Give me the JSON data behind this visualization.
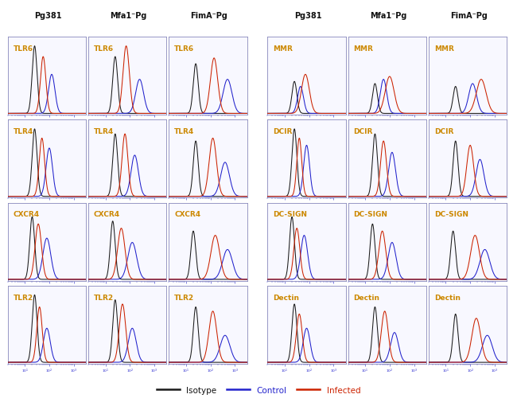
{
  "col_headers_left": [
    "Pg381",
    "Mfa1⁻Pg",
    "FimA⁻Pg"
  ],
  "col_headers_right": [
    "Pg381",
    "Mfa1⁻Pg",
    "FimA⁻Pg"
  ],
  "row_labels_left": [
    "TLR6",
    "TLR4",
    "CXCR4",
    "TLR2"
  ],
  "row_labels_right": [
    "MMR",
    "DCIR",
    "DC-SIGN",
    "Dectin"
  ],
  "label_color": "#CC8800",
  "axis_color": "#2222cc",
  "colors": {
    "isotype": "#1a1a1a",
    "control": "#2222cc",
    "infected": "#cc2200"
  },
  "legend_labels": [
    "Isotype",
    "Control",
    "Infected"
  ],
  "configs_left": {
    "0,0": {
      "iso": [
        1.4,
        0.1,
        0.95
      ],
      "ctrl": [
        2.1,
        0.13,
        0.55
      ],
      "inf": [
        1.75,
        0.11,
        0.8
      ]
    },
    "0,1": {
      "iso": [
        1.4,
        0.1,
        0.8
      ],
      "ctrl": [
        2.4,
        0.16,
        0.48
      ],
      "inf": [
        1.85,
        0.13,
        0.95
      ]
    },
    "0,2": {
      "iso": [
        1.4,
        0.1,
        0.7
      ],
      "ctrl": [
        2.7,
        0.18,
        0.48
      ],
      "inf": [
        2.15,
        0.15,
        0.78
      ]
    },
    "1,0": {
      "iso": [
        1.4,
        0.1,
        0.95
      ],
      "ctrl": [
        2.0,
        0.13,
        0.68
      ],
      "inf": [
        1.7,
        0.11,
        0.82
      ]
    },
    "1,1": {
      "iso": [
        1.4,
        0.1,
        0.88
      ],
      "ctrl": [
        2.2,
        0.15,
        0.58
      ],
      "inf": [
        1.8,
        0.12,
        0.88
      ]
    },
    "1,2": {
      "iso": [
        1.4,
        0.1,
        0.78
      ],
      "ctrl": [
        2.6,
        0.18,
        0.48
      ],
      "inf": [
        2.1,
        0.15,
        0.82
      ]
    },
    "2,0": {
      "iso": [
        1.3,
        0.1,
        0.88
      ],
      "ctrl": [
        1.9,
        0.16,
        0.58
      ],
      "inf": [
        1.55,
        0.13,
        0.78
      ]
    },
    "2,1": {
      "iso": [
        1.3,
        0.1,
        0.82
      ],
      "ctrl": [
        2.1,
        0.18,
        0.52
      ],
      "inf": [
        1.65,
        0.15,
        0.72
      ]
    },
    "2,2": {
      "iso": [
        1.3,
        0.1,
        0.68
      ],
      "ctrl": [
        2.7,
        0.2,
        0.42
      ],
      "inf": [
        2.2,
        0.18,
        0.62
      ]
    },
    "3,0": {
      "iso": [
        1.4,
        0.1,
        0.95
      ],
      "ctrl": [
        1.9,
        0.14,
        0.48
      ],
      "inf": [
        1.6,
        0.11,
        0.78
      ]
    },
    "3,1": {
      "iso": [
        1.4,
        0.1,
        0.88
      ],
      "ctrl": [
        2.1,
        0.16,
        0.48
      ],
      "inf": [
        1.7,
        0.13,
        0.82
      ]
    },
    "3,2": {
      "iso": [
        1.4,
        0.1,
        0.78
      ],
      "ctrl": [
        2.6,
        0.2,
        0.38
      ],
      "inf": [
        2.1,
        0.16,
        0.72
      ]
    }
  },
  "configs_right": {
    "0,0": {
      "iso": [
        1.4,
        0.1,
        0.45
      ],
      "ctrl": [
        1.65,
        0.12,
        0.38
      ],
      "inf": [
        1.85,
        0.16,
        0.55
      ]
    },
    "0,1": {
      "iso": [
        1.4,
        0.1,
        0.42
      ],
      "ctrl": [
        1.75,
        0.13,
        0.48
      ],
      "inf": [
        2.0,
        0.18,
        0.52
      ]
    },
    "0,2": {
      "iso": [
        1.4,
        0.1,
        0.38
      ],
      "ctrl": [
        2.1,
        0.16,
        0.42
      ],
      "inf": [
        2.45,
        0.2,
        0.48
      ]
    },
    "1,0": {
      "iso": [
        1.4,
        0.1,
        0.95
      ],
      "ctrl": [
        1.9,
        0.12,
        0.72
      ],
      "inf": [
        1.6,
        0.1,
        0.82
      ]
    },
    "1,1": {
      "iso": [
        1.4,
        0.1,
        0.88
      ],
      "ctrl": [
        2.1,
        0.14,
        0.62
      ],
      "inf": [
        1.75,
        0.12,
        0.78
      ]
    },
    "1,2": {
      "iso": [
        1.4,
        0.1,
        0.78
      ],
      "ctrl": [
        2.4,
        0.16,
        0.52
      ],
      "inf": [
        2.0,
        0.14,
        0.72
      ]
    },
    "2,0": {
      "iso": [
        1.3,
        0.1,
        0.88
      ],
      "ctrl": [
        1.8,
        0.14,
        0.62
      ],
      "inf": [
        1.5,
        0.12,
        0.72
      ]
    },
    "2,1": {
      "iso": [
        1.3,
        0.1,
        0.78
      ],
      "ctrl": [
        2.1,
        0.16,
        0.52
      ],
      "inf": [
        1.7,
        0.14,
        0.68
      ]
    },
    "2,2": {
      "iso": [
        1.3,
        0.1,
        0.68
      ],
      "ctrl": [
        2.6,
        0.2,
        0.42
      ],
      "inf": [
        2.2,
        0.18,
        0.62
      ]
    },
    "3,0": {
      "iso": [
        1.4,
        0.1,
        0.82
      ],
      "ctrl": [
        1.9,
        0.14,
        0.48
      ],
      "inf": [
        1.6,
        0.12,
        0.68
      ]
    },
    "3,1": {
      "iso": [
        1.4,
        0.1,
        0.78
      ],
      "ctrl": [
        2.2,
        0.16,
        0.42
      ],
      "inf": [
        1.8,
        0.14,
        0.72
      ]
    },
    "3,2": {
      "iso": [
        1.4,
        0.1,
        0.68
      ],
      "ctrl": [
        2.7,
        0.2,
        0.38
      ],
      "inf": [
        2.25,
        0.18,
        0.62
      ]
    }
  }
}
